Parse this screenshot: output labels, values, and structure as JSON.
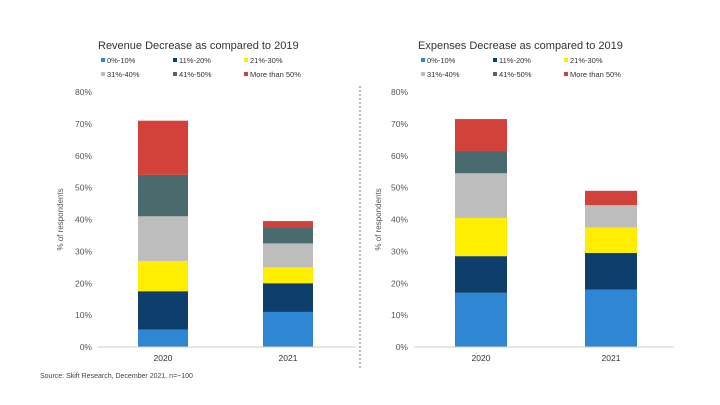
{
  "source_note": "Source: Skift Research, December 2021. n=~100",
  "colors": {
    "0%-10%": "#2f87d3",
    "11%-20%": "#0d3e6c",
    "21%-30%": "#ffee00",
    "31%-40%": "#bdbdbd",
    "41%-50%": "#4a6b6e",
    "More than 50%": "#d2423a"
  },
  "chart_data": [
    {
      "type": "bar",
      "stacked": true,
      "title": "Revenue Decrease as compared to 2019",
      "ylabel": "% of respondents",
      "ylim": [
        0,
        80
      ],
      "y_ticks": [
        "0%",
        "10%",
        "20%",
        "30%",
        "40%",
        "50%",
        "60%",
        "70%",
        "80%"
      ],
      "categories": [
        "2020",
        "2021"
      ],
      "legend_position": "top",
      "series": [
        {
          "name": "0%-10%",
          "values": [
            5.5,
            11
          ]
        },
        {
          "name": "11%-20%",
          "values": [
            12,
            9
          ]
        },
        {
          "name": "21%-30%",
          "values": [
            9.5,
            5
          ]
        },
        {
          "name": "31%-40%",
          "values": [
            14,
            7.5
          ]
        },
        {
          "name": "41%-50%",
          "values": [
            13,
            5
          ]
        },
        {
          "name": "More than 50%",
          "values": [
            17,
            2
          ]
        }
      ]
    },
    {
      "type": "bar",
      "stacked": true,
      "title": "Expenses Decrease as compared to 2019",
      "ylabel": "% of respondents",
      "ylim": [
        0,
        80
      ],
      "y_ticks": [
        "0%",
        "10%",
        "20%",
        "30%",
        "40%",
        "50%",
        "60%",
        "70%",
        "80%"
      ],
      "categories": [
        "2020",
        "2021"
      ],
      "legend_position": "top",
      "series": [
        {
          "name": "0%-10%",
          "values": [
            17,
            18
          ]
        },
        {
          "name": "11%-20%",
          "values": [
            11.5,
            11.5
          ]
        },
        {
          "name": "21%-30%",
          "values": [
            12,
            8
          ]
        },
        {
          "name": "31%-40%",
          "values": [
            14,
            7
          ]
        },
        {
          "name": "41%-50%",
          "values": [
            7,
            0
          ]
        },
        {
          "name": "More than 50%",
          "values": [
            10,
            4.5
          ]
        }
      ]
    }
  ]
}
